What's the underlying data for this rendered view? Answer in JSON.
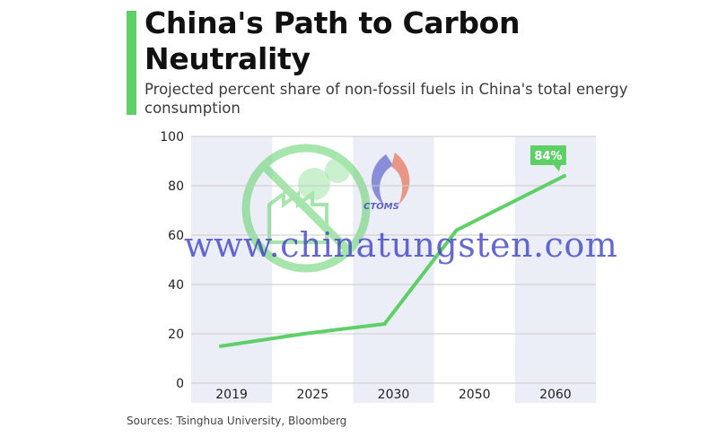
{
  "header": {
    "title": "China's Path to Carbon Neutrality",
    "subtitle": "Projected percent share of non-fossil fuels in China's total energy consumption"
  },
  "footer": {
    "source": "Sources: Tsinghua University, Bloomberg"
  },
  "watermark": {
    "text": "www.chinatungsten.com",
    "logo_text": "CTOMS"
  },
  "colors": {
    "accent": "#5fd068",
    "line": "#5fd068",
    "band": "#eceef7",
    "grid": "#c9c9c9"
  },
  "chart_data": {
    "type": "line",
    "title": "China's Path to Carbon Neutrality",
    "subtitle": "Projected percent share of non-fossil fuels in China's total energy consumption",
    "categories": [
      "2019",
      "2025",
      "2030",
      "2050",
      "2060"
    ],
    "values": [
      15,
      20,
      24,
      62,
      84
    ],
    "ylim": [
      0,
      100
    ],
    "yticks": [
      0,
      20,
      40,
      60,
      80,
      100
    ],
    "grid": true,
    "annotation": {
      "category": "2060",
      "text": "84%"
    }
  }
}
